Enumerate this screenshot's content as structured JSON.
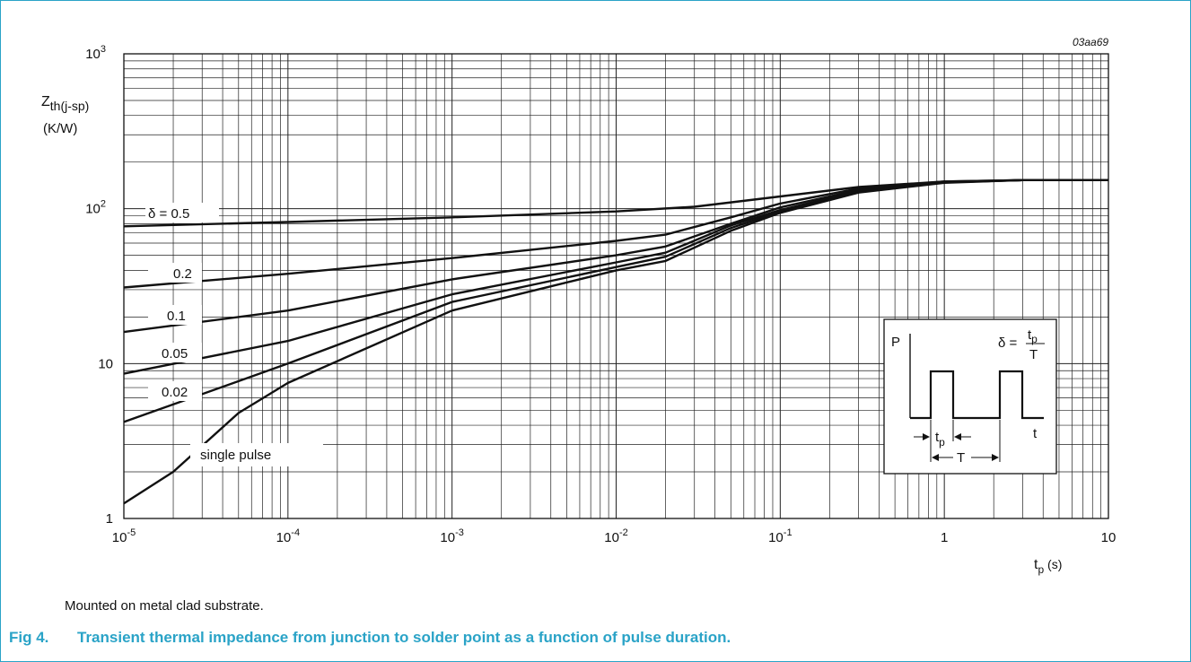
{
  "figure": {
    "label": "Fig 4.",
    "caption": "Transient thermal impedance from junction to solder point as a function of pulse duration.",
    "note": "Mounted on metal clad substrate.",
    "code": "03aa69"
  },
  "chart_data": {
    "type": "line",
    "x_scale": "log",
    "y_scale": "log",
    "xlim": [
      1e-05,
      10
    ],
    "ylim": [
      1,
      1000
    ],
    "grid": true,
    "xlabel": {
      "base": "t",
      "sub": "p",
      "unit": "(s)"
    },
    "ylabel": {
      "base": "Z",
      "sub": "th(j-sp)",
      "unit": "(K/W)"
    },
    "x_ticks": [
      {
        "base": "10",
        "exp": "-5"
      },
      {
        "base": "10",
        "exp": "-4"
      },
      {
        "base": "10",
        "exp": "-3"
      },
      {
        "base": "10",
        "exp": "-2"
      },
      {
        "base": "10",
        "exp": "-1"
      },
      {
        "base": "1",
        "exp": ""
      },
      {
        "base": "10",
        "exp": ""
      }
    ],
    "y_ticks": [
      {
        "base": "1",
        "exp": ""
      },
      {
        "base": "10",
        "exp": ""
      },
      {
        "base": "10",
        "exp": "2"
      },
      {
        "base": "10",
        "exp": "3"
      }
    ],
    "series": [
      {
        "name": "δ = 0.5",
        "x": [
          1e-05,
          0.0001,
          0.001,
          0.01,
          0.03,
          0.1,
          0.3,
          1,
          3,
          10
        ],
        "y": [
          77,
          82,
          88,
          96,
          103,
          120,
          138,
          150,
          153,
          153
        ]
      },
      {
        "name": "0.2",
        "x": [
          1e-05,
          0.0001,
          0.001,
          0.01,
          0.02,
          0.05,
          0.1,
          0.3,
          1,
          3,
          10
        ],
        "y": [
          31,
          38,
          48,
          62,
          68,
          88,
          108,
          135,
          150,
          153,
          153
        ]
      },
      {
        "name": "0.1",
        "x": [
          1e-05,
          0.0001,
          0.001,
          0.01,
          0.02,
          0.05,
          0.1,
          0.3,
          1,
          3,
          10
        ],
        "y": [
          16,
          22,
          35,
          50,
          57,
          80,
          102,
          132,
          149,
          153,
          153
        ]
      },
      {
        "name": "0.05",
        "x": [
          1e-05,
          0.0001,
          0.001,
          0.01,
          0.02,
          0.05,
          0.1,
          0.3,
          1,
          3,
          10
        ],
        "y": [
          8.6,
          14,
          28,
          45,
          52,
          78,
          98,
          130,
          148,
          153,
          153
        ]
      },
      {
        "name": "0.02",
        "x": [
          1e-05,
          0.0001,
          0.001,
          0.01,
          0.02,
          0.05,
          0.1,
          0.3,
          1,
          3,
          10
        ],
        "y": [
          4.2,
          10,
          25,
          42,
          49,
          75,
          96,
          128,
          148,
          153,
          153
        ]
      },
      {
        "name": "single pulse",
        "x": [
          1e-05,
          2e-05,
          5e-05,
          0.0001,
          0.001,
          0.01,
          0.02,
          0.05,
          0.1,
          0.3,
          1,
          3,
          10
        ],
        "y": [
          1.25,
          2,
          4.8,
          7.5,
          22,
          40,
          46,
          72,
          94,
          127,
          147,
          153,
          153
        ]
      }
    ],
    "inset": {
      "p_label": "P",
      "t_label": "t",
      "tp_label": {
        "base": "t",
        "sub": "p"
      },
      "T_label": "T",
      "delta_symbol": "δ =",
      "delta_num": {
        "base": "t",
        "sub": "p"
      },
      "delta_den": "T"
    }
  }
}
